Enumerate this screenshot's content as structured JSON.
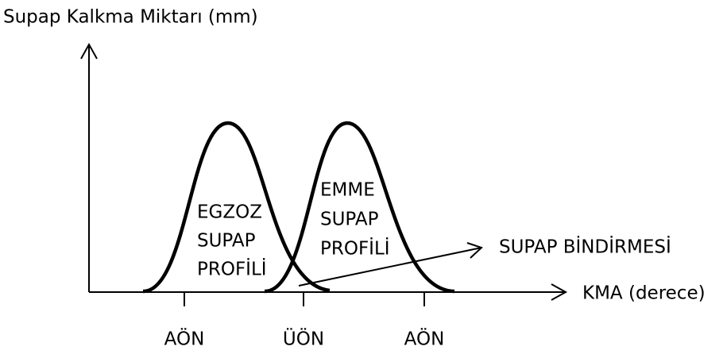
{
  "axes": {
    "y_label": "Supap Kalkma Miktarı (mm)",
    "x_label": "KMA (derece)"
  },
  "ticks": [
    "AÖN",
    "ÜÖN",
    "AÖN"
  ],
  "curves": [
    {
      "lines": [
        "EGZOZ",
        "SUPAP",
        "PROFİLİ"
      ]
    },
    {
      "lines": [
        "EMME",
        "SUPAP",
        "PROFİLİ"
      ]
    }
  ],
  "annotation": "SUPAP BİNDİRMESİ"
}
